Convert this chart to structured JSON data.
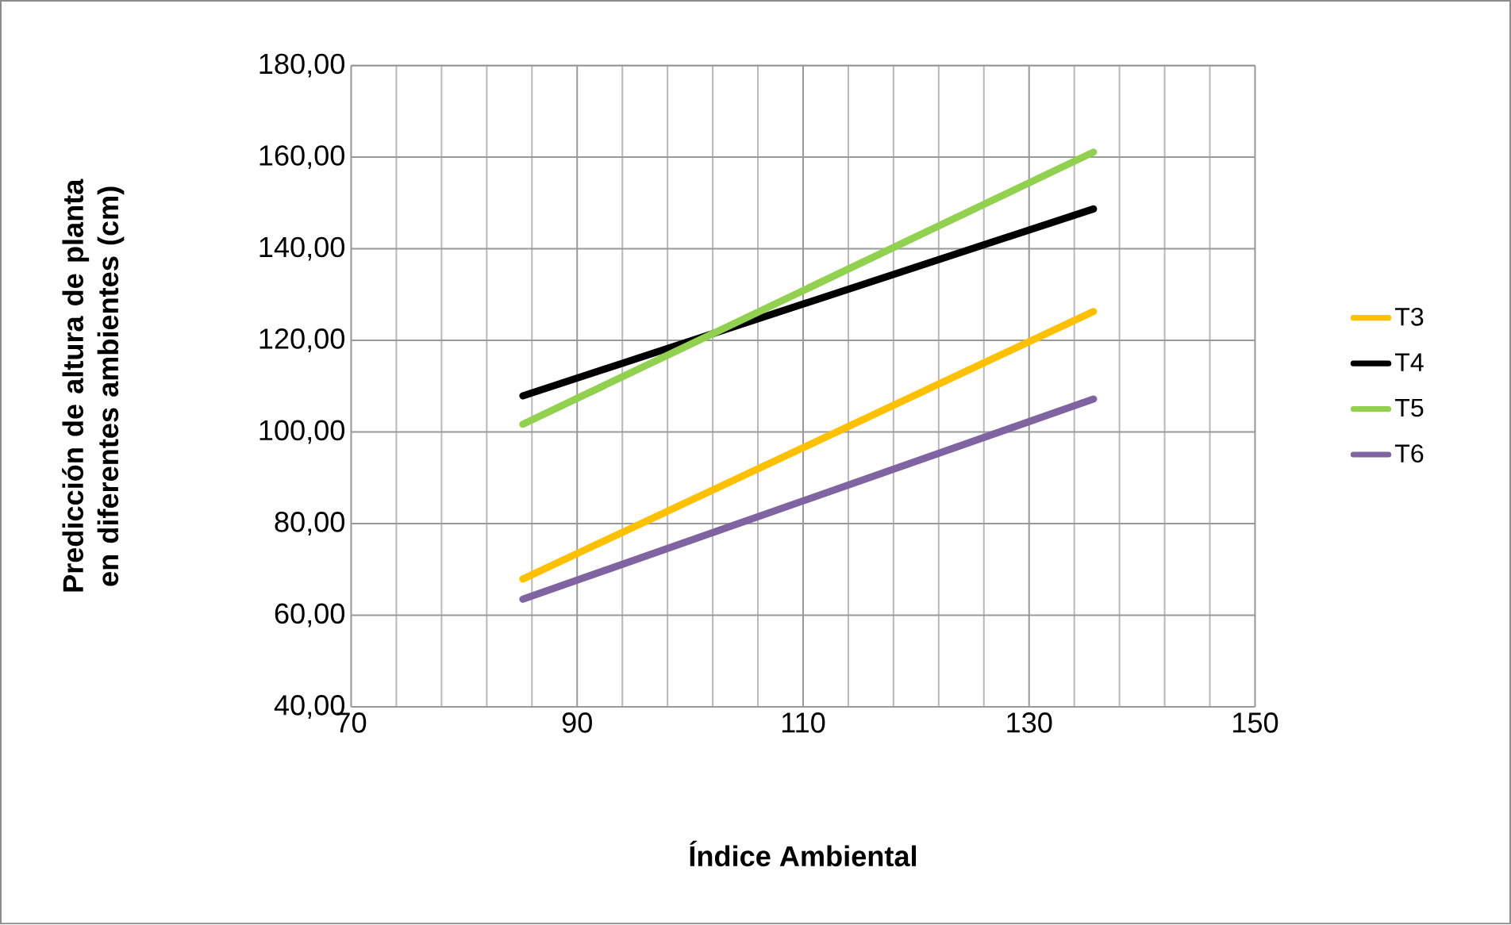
{
  "chart_data": {
    "type": "line",
    "xlabel": "Índice Ambiental",
    "ylabel": "Predicción de altura de planta en diferentes ambientes (cm)",
    "xlim": [
      70,
      150
    ],
    "xticks": [
      70,
      90,
      110,
      130,
      150
    ],
    "ylim": [
      40,
      180
    ],
    "yticks": [
      {
        "value": 40,
        "label": "40,00"
      },
      {
        "value": 60,
        "label": "60,00"
      },
      {
        "value": 80,
        "label": "80,00"
      },
      {
        "value": 100,
        "label": "100,00"
      },
      {
        "value": 120,
        "label": "120,00"
      },
      {
        "value": 140,
        "label": "140,00"
      },
      {
        "value": 160,
        "label": "160,00"
      },
      {
        "value": 180,
        "label": "180,00"
      }
    ],
    "grid": true,
    "legend": "right",
    "marker": "none",
    "line_style": "solid",
    "x": [
      85.2,
      135.7
    ],
    "series": [
      {
        "name": "T3",
        "color": "#ffc000",
        "values": [
          67.9,
          126.3
        ]
      },
      {
        "name": "T4",
        "color": "#000000",
        "values": [
          107.9,
          148.7
        ]
      },
      {
        "name": "T5",
        "color": "#92d050",
        "values": [
          101.7,
          161.1
        ]
      },
      {
        "name": "T6",
        "color": "#8064a2",
        "values": [
          63.5,
          107.2
        ]
      }
    ]
  }
}
